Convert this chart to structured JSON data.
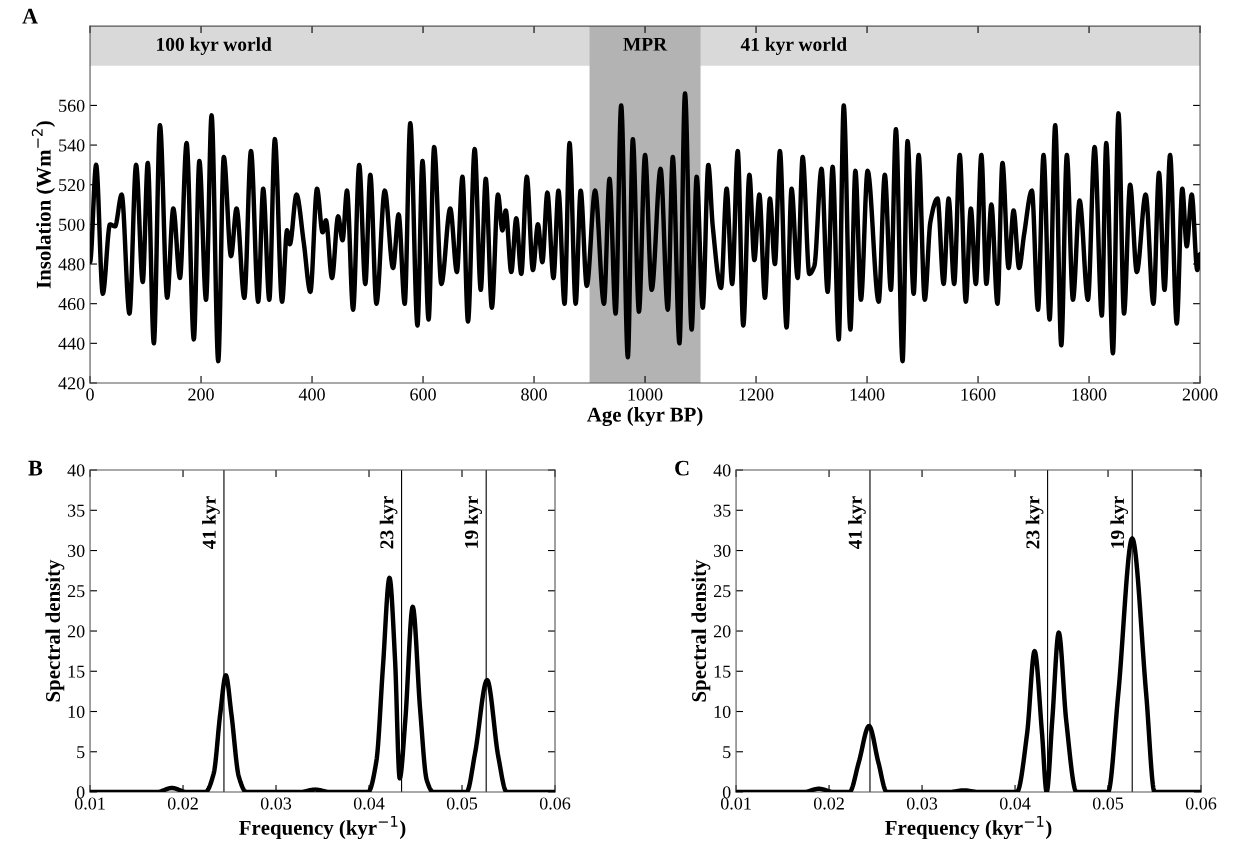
{
  "chart_data": [
    {
      "type": "line",
      "title": "A",
      "xlabel": "Age (kyr BP)",
      "ylabel": "Insolation (Wm$^{−2}$)",
      "xlim": [
        0,
        2000
      ],
      "ylim": [
        420,
        600
      ],
      "xticks": [
        0,
        200,
        400,
        600,
        800,
        1000,
        1200,
        1400,
        1600,
        1800,
        2000
      ],
      "yticks": [
        420,
        440,
        460,
        480,
        500,
        520,
        540,
        560
      ],
      "bands": [
        {
          "axis": "y",
          "from": 580,
          "to": 600,
          "color": "#d9d9d9"
        },
        {
          "axis": "x",
          "from": 900,
          "to": 1100,
          "label": "MPR",
          "color": "#b3b3b3"
        }
      ],
      "annotations": [
        "100 kyr world",
        "41 kyr world"
      ],
      "x": [
        0,
        11,
        23,
        36,
        45,
        57,
        71,
        83,
        95,
        104,
        115,
        126,
        139,
        150,
        162,
        174,
        187,
        197,
        209,
        219,
        231,
        241,
        254,
        264,
        278,
        290,
        303,
        312,
        323,
        333,
        346,
        355,
        360,
        372,
        385,
        397,
        409,
        419,
        425,
        436,
        447,
        455,
        463,
        474,
        485,
        496,
        505,
        516,
        531,
        546,
        556,
        567,
        577,
        590,
        599,
        610,
        620,
        633,
        649,
        661,
        671,
        681,
        693,
        704,
        713,
        724,
        735,
        743,
        749,
        759,
        768,
        777,
        787,
        798,
        807,
        815,
        824,
        835,
        844,
        855,
        864,
        875,
        884,
        895,
        910,
        926,
        936,
        947,
        957,
        969,
        978,
        989,
        1000,
        1012,
        1028,
        1041,
        1050,
        1062,
        1072,
        1084,
        1093,
        1104,
        1114,
        1122,
        1137,
        1147,
        1157,
        1167,
        1177,
        1188,
        1197,
        1206,
        1216,
        1225,
        1234,
        1243,
        1255,
        1264,
        1275,
        1284,
        1296,
        1305,
        1318,
        1329,
        1338,
        1349,
        1358,
        1370,
        1379,
        1389,
        1401,
        1421,
        1432,
        1443,
        1452,
        1464,
        1473,
        1484,
        1493,
        1504,
        1514,
        1527,
        1538,
        1547,
        1557,
        1567,
        1578,
        1587,
        1596,
        1606,
        1615,
        1624,
        1635,
        1644,
        1655,
        1664,
        1674,
        1683,
        1697,
        1708,
        1718,
        1729,
        1739,
        1750,
        1760,
        1771,
        1783,
        1798,
        1810,
        1823,
        1831,
        1843,
        1853,
        1863,
        1874,
        1886,
        1902,
        1916,
        1926,
        1936,
        1946,
        1958,
        1968,
        1976,
        1985,
        1995,
        2000
      ],
      "series": [
        {
          "color": "#000000",
          "values": [
            481,
            530,
            465,
            500,
            499,
            515,
            455,
            530,
            471,
            531,
            440,
            550,
            463,
            508,
            473,
            541,
            442,
            532,
            462,
            555,
            431,
            534,
            484,
            508,
            463,
            537,
            461,
            518,
            462,
            543,
            461,
            497,
            490,
            515,
            491,
            466,
            518,
            496,
            502,
            473,
            504,
            492,
            517,
            457,
            530,
            470,
            525,
            460,
            517,
            478,
            505,
            460,
            551,
            449,
            532,
            452,
            539,
            470,
            508,
            476,
            524,
            451,
            538,
            467,
            523,
            458,
            515,
            497,
            507,
            476,
            503,
            475,
            524,
            477,
            500,
            481,
            516,
            473,
            517,
            460,
            541,
            460,
            517,
            469,
            517,
            460,
            523,
            455,
            560,
            433,
            543,
            456,
            535,
            467,
            528,
            457,
            534,
            440,
            566,
            447,
            524,
            458,
            530,
            499,
            468,
            518,
            470,
            537,
            449,
            525,
            482,
            515,
            463,
            513,
            480,
            537,
            448,
            518,
            473,
            534,
            475,
            479,
            528,
            466,
            529,
            442,
            560,
            447,
            527,
            462,
            527,
            461,
            525,
            467,
            548,
            431,
            542,
            465,
            535,
            462,
            501,
            513,
            470,
            513,
            470,
            535,
            461,
            508,
            470,
            535,
            470,
            510,
            460,
            531,
            478,
            507,
            478,
            495,
            517,
            457,
            535,
            452,
            550,
            439,
            535,
            462,
            512,
            462,
            539,
            454,
            541,
            435,
            556,
            455,
            520,
            476,
            515,
            460,
            526,
            467,
            535,
            450,
            518,
            489,
            515,
            477,
            485
          ]
        }
      ]
    },
    {
      "type": "line",
      "title": "B",
      "xlabel": "Frequency (kyr$^{−1}$)",
      "ylabel": "Spectral density",
      "xlim": [
        0.01,
        0.06
      ],
      "ylim": [
        0,
        40
      ],
      "xticks": [
        0.01,
        0.02,
        0.03,
        0.04,
        0.05,
        0.06
      ],
      "yticks": [
        0,
        5,
        10,
        15,
        20,
        25,
        30,
        35,
        40
      ],
      "ref_lines": [
        {
          "axis": "x",
          "value": 0.0244,
          "label": "41 kyr",
          "color": "#000000"
        },
        {
          "axis": "x",
          "value": 0.0435,
          "label": "23 kyr",
          "color": "#000000"
        },
        {
          "axis": "x",
          "value": 0.0526,
          "label": "19 kyr",
          "color": "#000000"
        }
      ],
      "x": [
        0.01,
        0.0172,
        0.0188,
        0.0204,
        0.0224,
        0.0233,
        0.024,
        0.0246,
        0.0252,
        0.026,
        0.0268,
        0.0326,
        0.0342,
        0.0358,
        0.0399,
        0.0408,
        0.0415,
        0.0422,
        0.0428,
        0.0433,
        0.0439,
        0.0447,
        0.0455,
        0.0462,
        0.0469,
        0.0505,
        0.0514,
        0.0527,
        0.0539,
        0.0548,
        0.06
      ],
      "series": [
        {
          "color": "#000000",
          "values": [
            0,
            0,
            0.5,
            0,
            0,
            2.3,
            9.7,
            14.5,
            9.7,
            1.9,
            0,
            0,
            0.3,
            0,
            0,
            3.9,
            15.6,
            26.6,
            16.4,
            1.7,
            8.9,
            23.0,
            10.2,
            1.5,
            0,
            0,
            4.8,
            13.9,
            4.4,
            0,
            0
          ]
        }
      ]
    },
    {
      "type": "line",
      "title": "C",
      "xlabel": "Frequency (kyr$^{−1}$)",
      "ylabel": "Spectral density",
      "xlim": [
        0.01,
        0.06
      ],
      "ylim": [
        0,
        40
      ],
      "xticks": [
        0.01,
        0.02,
        0.03,
        0.04,
        0.05,
        0.06
      ],
      "yticks": [
        0,
        5,
        10,
        15,
        20,
        25,
        30,
        35,
        40
      ],
      "ref_lines": [
        {
          "axis": "x",
          "value": 0.0244,
          "label": "41 kyr",
          "color": "#000000"
        },
        {
          "axis": "x",
          "value": 0.0435,
          "label": "23 kyr",
          "color": "#000000"
        },
        {
          "axis": "x",
          "value": 0.0526,
          "label": "19 kyr",
          "color": "#000000"
        }
      ],
      "x": [
        0.01,
        0.0173,
        0.0189,
        0.0205,
        0.0222,
        0.0232,
        0.0243,
        0.0253,
        0.0262,
        0.0329,
        0.0345,
        0.0361,
        0.0402,
        0.0413,
        0.0421,
        0.0429,
        0.0434,
        0.044,
        0.0447,
        0.0455,
        0.0466,
        0.05,
        0.0511,
        0.0526,
        0.0541,
        0.055,
        0.06
      ],
      "series": [
        {
          "color": "#000000",
          "values": [
            0,
            0,
            0.4,
            0,
            0,
            3.7,
            8.2,
            3.7,
            0,
            0,
            0.2,
            0,
            0,
            7.3,
            17.5,
            7.3,
            0,
            8.9,
            19.8,
            8.9,
            0,
            0,
            12.2,
            31.5,
            12.2,
            0,
            0
          ]
        }
      ]
    }
  ]
}
